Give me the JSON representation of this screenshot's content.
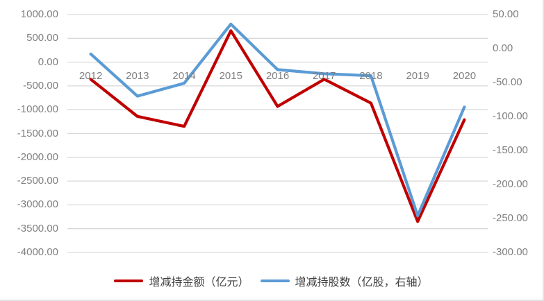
{
  "chart_data": {
    "type": "line",
    "title": "",
    "xlabel": "",
    "ylabel": "",
    "categories": [
      "2012",
      "2013",
      "2014",
      "2015",
      "2016",
      "2017",
      "2018",
      "2019",
      "2020"
    ],
    "series": [
      {
        "name": "增减持金额（亿元）",
        "axis": "left",
        "color": "#c00000",
        "values": [
          -360,
          -1140,
          -1350,
          660,
          -930,
          -360,
          -860,
          -3350,
          -1210
        ]
      },
      {
        "name": "增减持股数（亿股，右轴）",
        "axis": "right",
        "color": "#5b9bd5",
        "values": [
          -8,
          -70,
          -51,
          36,
          -31,
          -37,
          -40,
          -246,
          -86
        ]
      }
    ],
    "left_axis": {
      "max": 1000,
      "min": -4000,
      "step": 500,
      "tick_labels": [
        "1000.00",
        "500.00",
        "0.00",
        "-500.00",
        "-1000.00",
        "-1500.00",
        "-2000.00",
        "-2500.00",
        "-3000.00",
        "-3500.00",
        "-4000.00"
      ]
    },
    "right_axis": {
      "max": 50,
      "min": -300,
      "step": 50,
      "tick_labels": [
        "50.00",
        "0.00",
        "-50.00",
        "-100.00",
        "-150.00",
        "-200.00",
        "-250.00",
        "-300.00"
      ]
    },
    "grid": true,
    "legend_position": "bottom"
  },
  "colors": {
    "background": "#ffffff",
    "gridline": "#d9d9d9",
    "axis_text": "#7f7f7f",
    "legend_text": "#404040",
    "series_amount": "#c00000",
    "series_shares": "#5b9bd5"
  }
}
